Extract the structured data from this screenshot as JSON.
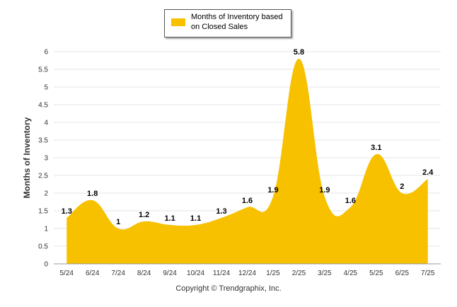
{
  "legend": {
    "label": "Months of Inventory based on Closed Sales"
  },
  "copyright": "Copyright © Trendgraphix, Inc.",
  "colors": {
    "series": "#f7c100",
    "grid": "#e6e6e6",
    "axis": "#000000"
  },
  "chart_data": {
    "type": "area",
    "title": "",
    "xlabel": "",
    "ylabel": "Months of Inventory",
    "ylim": [
      0,
      6
    ],
    "yticks": [
      "0",
      "0.5",
      "1",
      "1.5",
      "2",
      "2.5",
      "3",
      "3.5",
      "4",
      "4.5",
      "5",
      "5.5",
      "6"
    ],
    "categories": [
      "5/24",
      "6/24",
      "7/24",
      "8/24",
      "9/24",
      "10/24",
      "11/24",
      "12/24",
      "1/25",
      "2/25",
      "3/25",
      "4/25",
      "5/25",
      "6/25",
      "7/25"
    ],
    "series": [
      {
        "name": "Months of Inventory based on Closed Sales",
        "values": [
          1.3,
          1.8,
          1,
          1.2,
          1.1,
          1.1,
          1.3,
          1.6,
          1.9,
          5.8,
          1.9,
          1.6,
          3.1,
          2,
          2.4
        ],
        "labels": [
          "1.3",
          "1.8",
          "1",
          "1.2",
          "1.1",
          "1.1",
          "1.3",
          "1.6",
          "1.9",
          "5.8",
          "1.9",
          "1.6",
          "3.1",
          "2",
          "2.4"
        ]
      }
    ],
    "grid": true,
    "legend_position": "top-center"
  }
}
